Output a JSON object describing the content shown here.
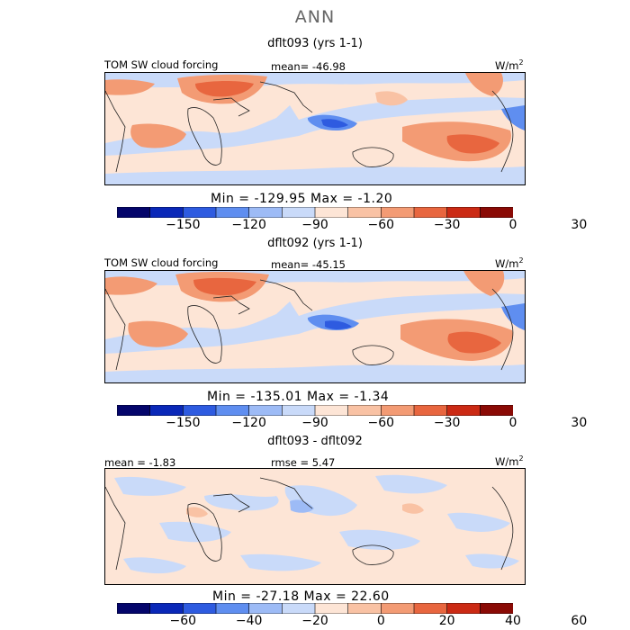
{
  "main_title": "ANN",
  "colors": {
    "palette12": [
      "#04056b",
      "#0a28b8",
      "#2e5be0",
      "#5f8ef0",
      "#9dbbf6",
      "#c9daf9",
      "#fde5d6",
      "#f9c2a4",
      "#f39b74",
      "#e8663f",
      "#cb2a14",
      "#8a0a05"
    ]
  },
  "panels": [
    {
      "title": "dflt093 (yrs 1-1)",
      "left_label": "TOM SW cloud forcing",
      "mean_label": "mean= -46.98",
      "units_base": "W/m",
      "units_exp": "2",
      "stats": "Min = -129.95  Max =  -1.20",
      "colorbar_ticks": [
        "-150",
        "-120",
        "-90",
        "-60",
        "-30",
        "0",
        "30"
      ]
    },
    {
      "title": "dflt092 (yrs 1-1)",
      "left_label": "TOM SW cloud forcing",
      "mean_label": "mean= -45.15",
      "units_base": "W/m",
      "units_exp": "2",
      "stats": "Min = -135.01  Max =  -1.34",
      "colorbar_ticks": [
        "-150",
        "-120",
        "-90",
        "-60",
        "-30",
        "0",
        "30"
      ]
    },
    {
      "title": "dflt093 - dflt092",
      "left_label": "mean =  -1.83",
      "mean_label": "rmse =   5.47",
      "units_base": "W/m",
      "units_exp": "2",
      "stats": "Min = -27.18  Max =  22.60",
      "colorbar_ticks": [
        "-60",
        "-40",
        "-20",
        "0",
        "20",
        "40",
        "60"
      ]
    }
  ],
  "chart_data": [
    {
      "type": "heatmap",
      "title": "dflt093 (yrs 1-1)",
      "variable": "TOM SW cloud forcing",
      "units": "W/m2",
      "mean": -46.98,
      "min": -129.95,
      "max": -1.2,
      "colorbar_levels": [
        -165,
        -150,
        -135,
        -120,
        -105,
        -90,
        -75,
        -60,
        -45,
        -30,
        -15,
        0,
        15,
        30,
        45
      ],
      "colorbar_tick_labels": [
        -150,
        -120,
        -90,
        -60,
        -30,
        0,
        30
      ]
    },
    {
      "type": "heatmap",
      "title": "dflt092 (yrs 1-1)",
      "variable": "TOM SW cloud forcing",
      "units": "W/m2",
      "mean": -45.15,
      "min": -135.01,
      "max": -1.34,
      "colorbar_levels": [
        -165,
        -150,
        -135,
        -120,
        -105,
        -90,
        -75,
        -60,
        -45,
        -30,
        -15,
        0,
        15,
        30,
        45
      ],
      "colorbar_tick_labels": [
        -150,
        -120,
        -90,
        -60,
        -30,
        0,
        30
      ]
    },
    {
      "type": "heatmap",
      "title": "dflt093 - dflt092",
      "units": "W/m2",
      "mean": -1.83,
      "rmse": 5.47,
      "min": -27.18,
      "max": 22.6,
      "colorbar_levels": [
        -70,
        -60,
        -50,
        -40,
        -30,
        -20,
        -10,
        0,
        10,
        20,
        30,
        40,
        50,
        60,
        70
      ],
      "colorbar_tick_labels": [
        -60,
        -40,
        -20,
        0,
        20,
        40,
        60
      ]
    }
  ]
}
